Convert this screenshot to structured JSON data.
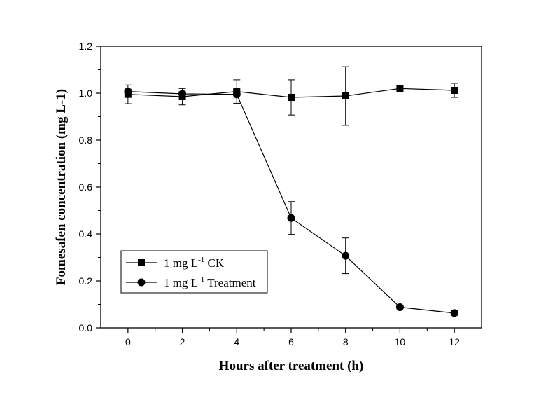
{
  "chart_data": {
    "type": "line",
    "xlabel": "Hours after treatment (h)",
    "ylabel": "Fomesafen concentration (mg L-1)",
    "xlim": [
      -1,
      13
    ],
    "ylim": [
      0.0,
      1.2
    ],
    "x_ticks": [
      "0",
      "2",
      "4",
      "6",
      "8",
      "10",
      "12"
    ],
    "y_ticks": [
      "0.0",
      "0.2",
      "0.4",
      "0.6",
      "0.8",
      "1.0",
      "1.2"
    ],
    "legend_position": "bottom-left",
    "series": [
      {
        "name": "1 mg L-1 CK",
        "legend_main": "1 mg L",
        "legend_sup": "-1",
        "legend_tail": " CK",
        "marker": "square",
        "x": [
          0,
          2,
          4,
          6,
          8,
          10,
          12
        ],
        "y": [
          0.995,
          0.985,
          1.007,
          0.982,
          0.988,
          1.02,
          1.012
        ],
        "err": [
          0.04,
          0.035,
          0.05,
          0.075,
          0.125,
          0.008,
          0.03
        ]
      },
      {
        "name": "1 mg L-1 Treatment",
        "legend_main": "1 mg L",
        "legend_sup": "-1",
        "legend_tail": " Treatment",
        "marker": "circle",
        "x": [
          0,
          2,
          4,
          6,
          8,
          10,
          12
        ],
        "y": [
          1.007,
          0.997,
          0.995,
          0.468,
          0.307,
          0.088,
          0.063
        ],
        "err": [
          0.01,
          0.01,
          0.02,
          0.07,
          0.076,
          0.005,
          0.01
        ]
      }
    ]
  }
}
